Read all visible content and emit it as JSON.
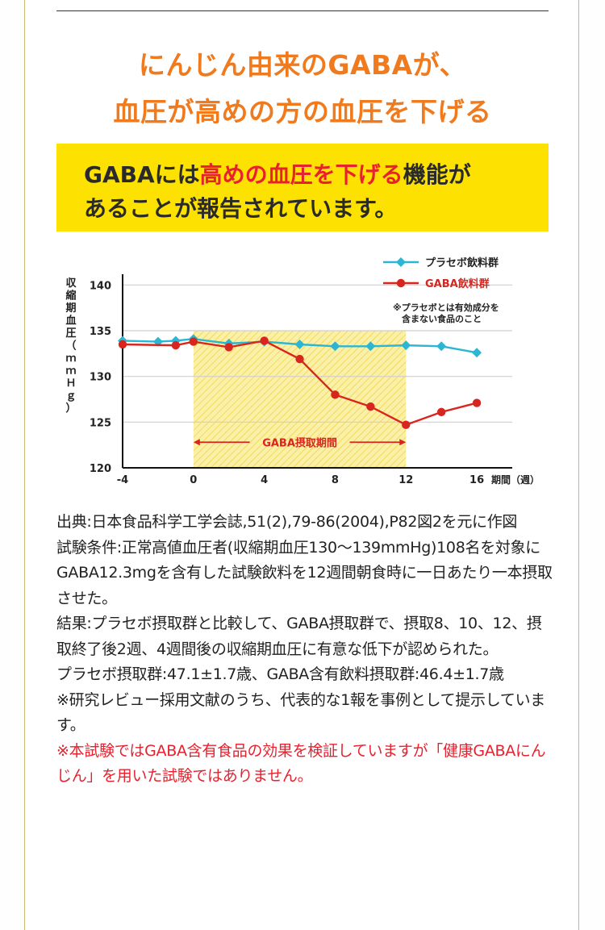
{
  "headline": {
    "line1": "にんじん由来のGABAが、",
    "line2": "血圧が高めの方の血圧を下げる"
  },
  "banner": {
    "line1_pre": "GABAには",
    "line1_highlight": "高めの血圧を下げる",
    "line1_post": "機能が",
    "line2": "あることが報告されています。"
  },
  "colors": {
    "accent_orange": "#f07a1e",
    "banner_yellow": "#fde100",
    "highlight_red": "#e8212e",
    "placebo_series": "#2bb6d3",
    "gaba_series": "#d8261f",
    "gaba_period_fill": "#fbf0a8"
  },
  "chart_data": {
    "type": "line",
    "ylabel": "収縮期血圧（ｍｍＨｇ）",
    "xlabel": "期間（週）",
    "ylim": [
      120,
      141
    ],
    "yticks": [
      120,
      125,
      130,
      135,
      140
    ],
    "xlim": [
      -4,
      18
    ],
    "xticks": [
      -4,
      0,
      4,
      8,
      12,
      16
    ],
    "grid": true,
    "legend_position": "top-right",
    "legend_note": "※プラセボとは有効成分を含まない食品のこと",
    "period_label": "GABA摂取期間",
    "period_range": [
      0,
      12
    ],
    "series": [
      {
        "name": "プラセボ飲料群",
        "color": "#2bb6d3",
        "marker": "diamond",
        "x": [
          -4,
          -2,
          -1,
          0,
          2,
          4,
          6,
          8,
          10,
          12,
          14,
          16
        ],
        "values": [
          133.9,
          133.8,
          133.9,
          134.1,
          133.6,
          133.8,
          133.5,
          133.3,
          133.3,
          133.4,
          133.3,
          132.6
        ]
      },
      {
        "name": "GABA飲料群",
        "color": "#d8261f",
        "marker": "circle",
        "x": [
          -4,
          -1,
          0,
          2,
          4,
          6,
          8,
          10,
          12,
          14,
          16
        ],
        "values": [
          133.5,
          133.4,
          133.8,
          133.2,
          133.9,
          131.9,
          128.0,
          126.7,
          124.7,
          126.1,
          127.1
        ]
      }
    ]
  },
  "notes": {
    "source": "出典:日本食品科学工学会誌,51(2),79-86(2004),P82図2を元に作図",
    "conditions": "試験条件:正常高値血圧者(収縮期血圧130～139mmHg)108名を対象にGABA12.3mgを含有した試験飲料を12週間朝食時に一日あたり一本摂取させた。",
    "result": "結果:プラセボ摂取群と比較して、GABA摂取群で、摂取8、10、12、摂取終了後2週、4週間後の収縮期血圧に有意な低下が認められた。",
    "ages": "プラセボ摂取群:47.1±1.7歳、GABA含有飲料摂取群:46.4±1.7歳",
    "review": "※研究レビュー採用文献のうち、代表的な1報を事例として提示しています。",
    "disclaimer": "※本試験ではGABA含有食品の効果を検証していますが「健康GABAにんじん」を用いた試験ではありません。"
  }
}
